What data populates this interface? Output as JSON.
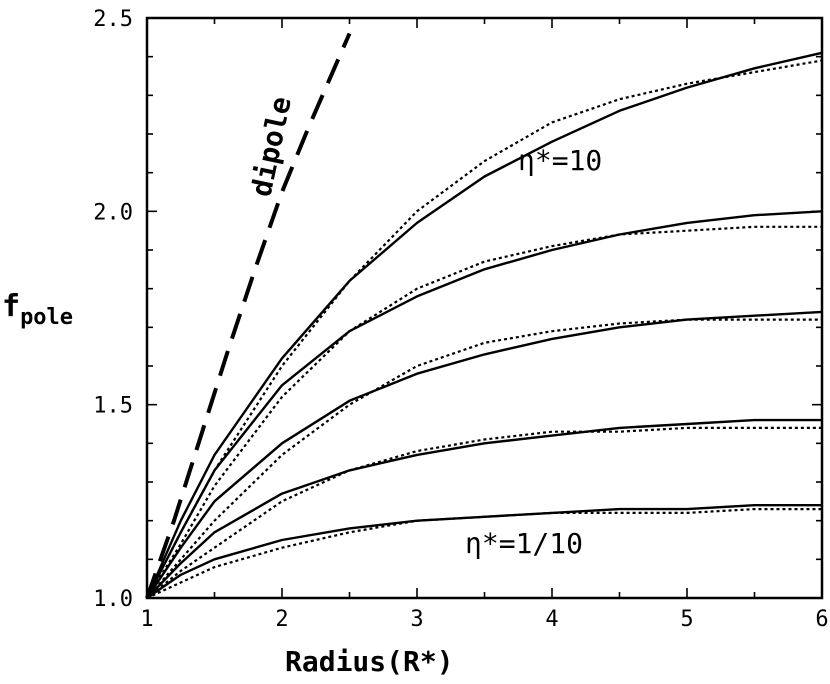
{
  "chart_data": {
    "type": "line",
    "xlabel": "Radius(R*)",
    "ylabel": "f_pole",
    "ylabel_main": "f",
    "ylabel_sub": "pole",
    "xlim": [
      1,
      6
    ],
    "ylim": [
      1.0,
      2.5
    ],
    "x_ticks": [
      1,
      2,
      3,
      4,
      5,
      6
    ],
    "x_tick_labels": [
      "1",
      "2",
      "3",
      "4",
      "5",
      "6"
    ],
    "y_ticks": [
      1.0,
      1.5,
      2.0,
      2.5
    ],
    "y_tick_labels": [
      "1.0",
      "1.5",
      "2.0",
      "2.5"
    ],
    "grid": false,
    "annotations": [
      {
        "text": "dipole",
        "x": 1.95,
        "y": 2.05
      },
      {
        "text": "η*=10",
        "x": 3.75,
        "y": 2.11
      },
      {
        "text": "η*=1/10",
        "x": 3.4,
        "y": 1.13
      }
    ],
    "series": [
      {
        "style": "dashed",
        "x": [
          1.0,
          1.2,
          1.4,
          1.6,
          1.8,
          2.0,
          2.2,
          2.5
        ],
        "y": [
          1.0,
          1.2,
          1.42,
          1.64,
          1.85,
          2.05,
          2.22,
          2.46
        ]
      },
      {
        "style": "solid",
        "x": [
          1.0,
          1.25,
          1.5,
          2.0,
          2.5,
          3.0,
          3.5,
          4.0,
          4.5,
          5.0,
          5.5,
          6.0
        ],
        "y": [
          1.0,
          1.2,
          1.37,
          1.62,
          1.82,
          1.97,
          2.09,
          2.18,
          2.26,
          2.32,
          2.37,
          2.41
        ]
      },
      {
        "style": "dotted",
        "x": [
          1.0,
          1.25,
          1.5,
          2.0,
          2.5,
          3.0,
          3.5,
          4.0,
          4.5,
          5.0,
          5.5,
          6.0
        ],
        "y": [
          1.0,
          1.17,
          1.33,
          1.6,
          1.82,
          2.0,
          2.13,
          2.23,
          2.29,
          2.33,
          2.36,
          2.39
        ]
      },
      {
        "style": "solid",
        "x": [
          1.0,
          1.25,
          1.5,
          2.0,
          2.5,
          3.0,
          3.5,
          4.0,
          4.5,
          5.0,
          5.5,
          6.0
        ],
        "y": [
          1.0,
          1.17,
          1.33,
          1.55,
          1.69,
          1.78,
          1.85,
          1.9,
          1.94,
          1.97,
          1.99,
          2.0
        ]
      },
      {
        "style": "dotted",
        "x": [
          1.0,
          1.25,
          1.5,
          2.0,
          2.5,
          3.0,
          3.5,
          4.0,
          4.5,
          5.0,
          5.5,
          6.0
        ],
        "y": [
          1.0,
          1.14,
          1.29,
          1.52,
          1.69,
          1.8,
          1.87,
          1.91,
          1.94,
          1.95,
          1.96,
          1.96
        ]
      },
      {
        "style": "solid",
        "x": [
          1.0,
          1.25,
          1.5,
          2.0,
          2.5,
          3.0,
          3.5,
          4.0,
          4.5,
          5.0,
          5.5,
          6.0
        ],
        "y": [
          1.0,
          1.13,
          1.25,
          1.4,
          1.51,
          1.58,
          1.63,
          1.67,
          1.7,
          1.72,
          1.73,
          1.74
        ]
      },
      {
        "style": "dotted",
        "x": [
          1.0,
          1.25,
          1.5,
          2.0,
          2.5,
          3.0,
          3.5,
          4.0,
          4.5,
          5.0,
          5.5,
          6.0
        ],
        "y": [
          1.0,
          1.1,
          1.2,
          1.37,
          1.5,
          1.6,
          1.66,
          1.69,
          1.71,
          1.72,
          1.72,
          1.72
        ]
      },
      {
        "style": "solid",
        "x": [
          1.0,
          1.25,
          1.5,
          2.0,
          2.5,
          3.0,
          3.5,
          4.0,
          4.5,
          5.0,
          5.5,
          6.0
        ],
        "y": [
          1.0,
          1.09,
          1.17,
          1.27,
          1.33,
          1.37,
          1.4,
          1.42,
          1.44,
          1.45,
          1.46,
          1.46
        ]
      },
      {
        "style": "dotted",
        "x": [
          1.0,
          1.25,
          1.5,
          2.0,
          2.5,
          3.0,
          3.5,
          4.0,
          4.5,
          5.0,
          5.5,
          6.0
        ],
        "y": [
          1.0,
          1.07,
          1.13,
          1.25,
          1.33,
          1.38,
          1.41,
          1.43,
          1.43,
          1.44,
          1.44,
          1.44
        ]
      },
      {
        "style": "solid",
        "x": [
          1.0,
          1.25,
          1.5,
          2.0,
          2.5,
          3.0,
          3.5,
          4.0,
          4.5,
          5.0,
          5.5,
          6.0
        ],
        "y": [
          1.0,
          1.06,
          1.1,
          1.15,
          1.18,
          1.2,
          1.21,
          1.22,
          1.23,
          1.23,
          1.24,
          1.24
        ]
      },
      {
        "style": "dotted",
        "x": [
          1.0,
          1.25,
          1.5,
          2.0,
          2.5,
          3.0,
          3.5,
          4.0,
          4.5,
          5.0,
          5.5,
          6.0
        ],
        "y": [
          1.0,
          1.04,
          1.08,
          1.13,
          1.17,
          1.2,
          1.21,
          1.22,
          1.22,
          1.22,
          1.23,
          1.23
        ]
      }
    ]
  }
}
